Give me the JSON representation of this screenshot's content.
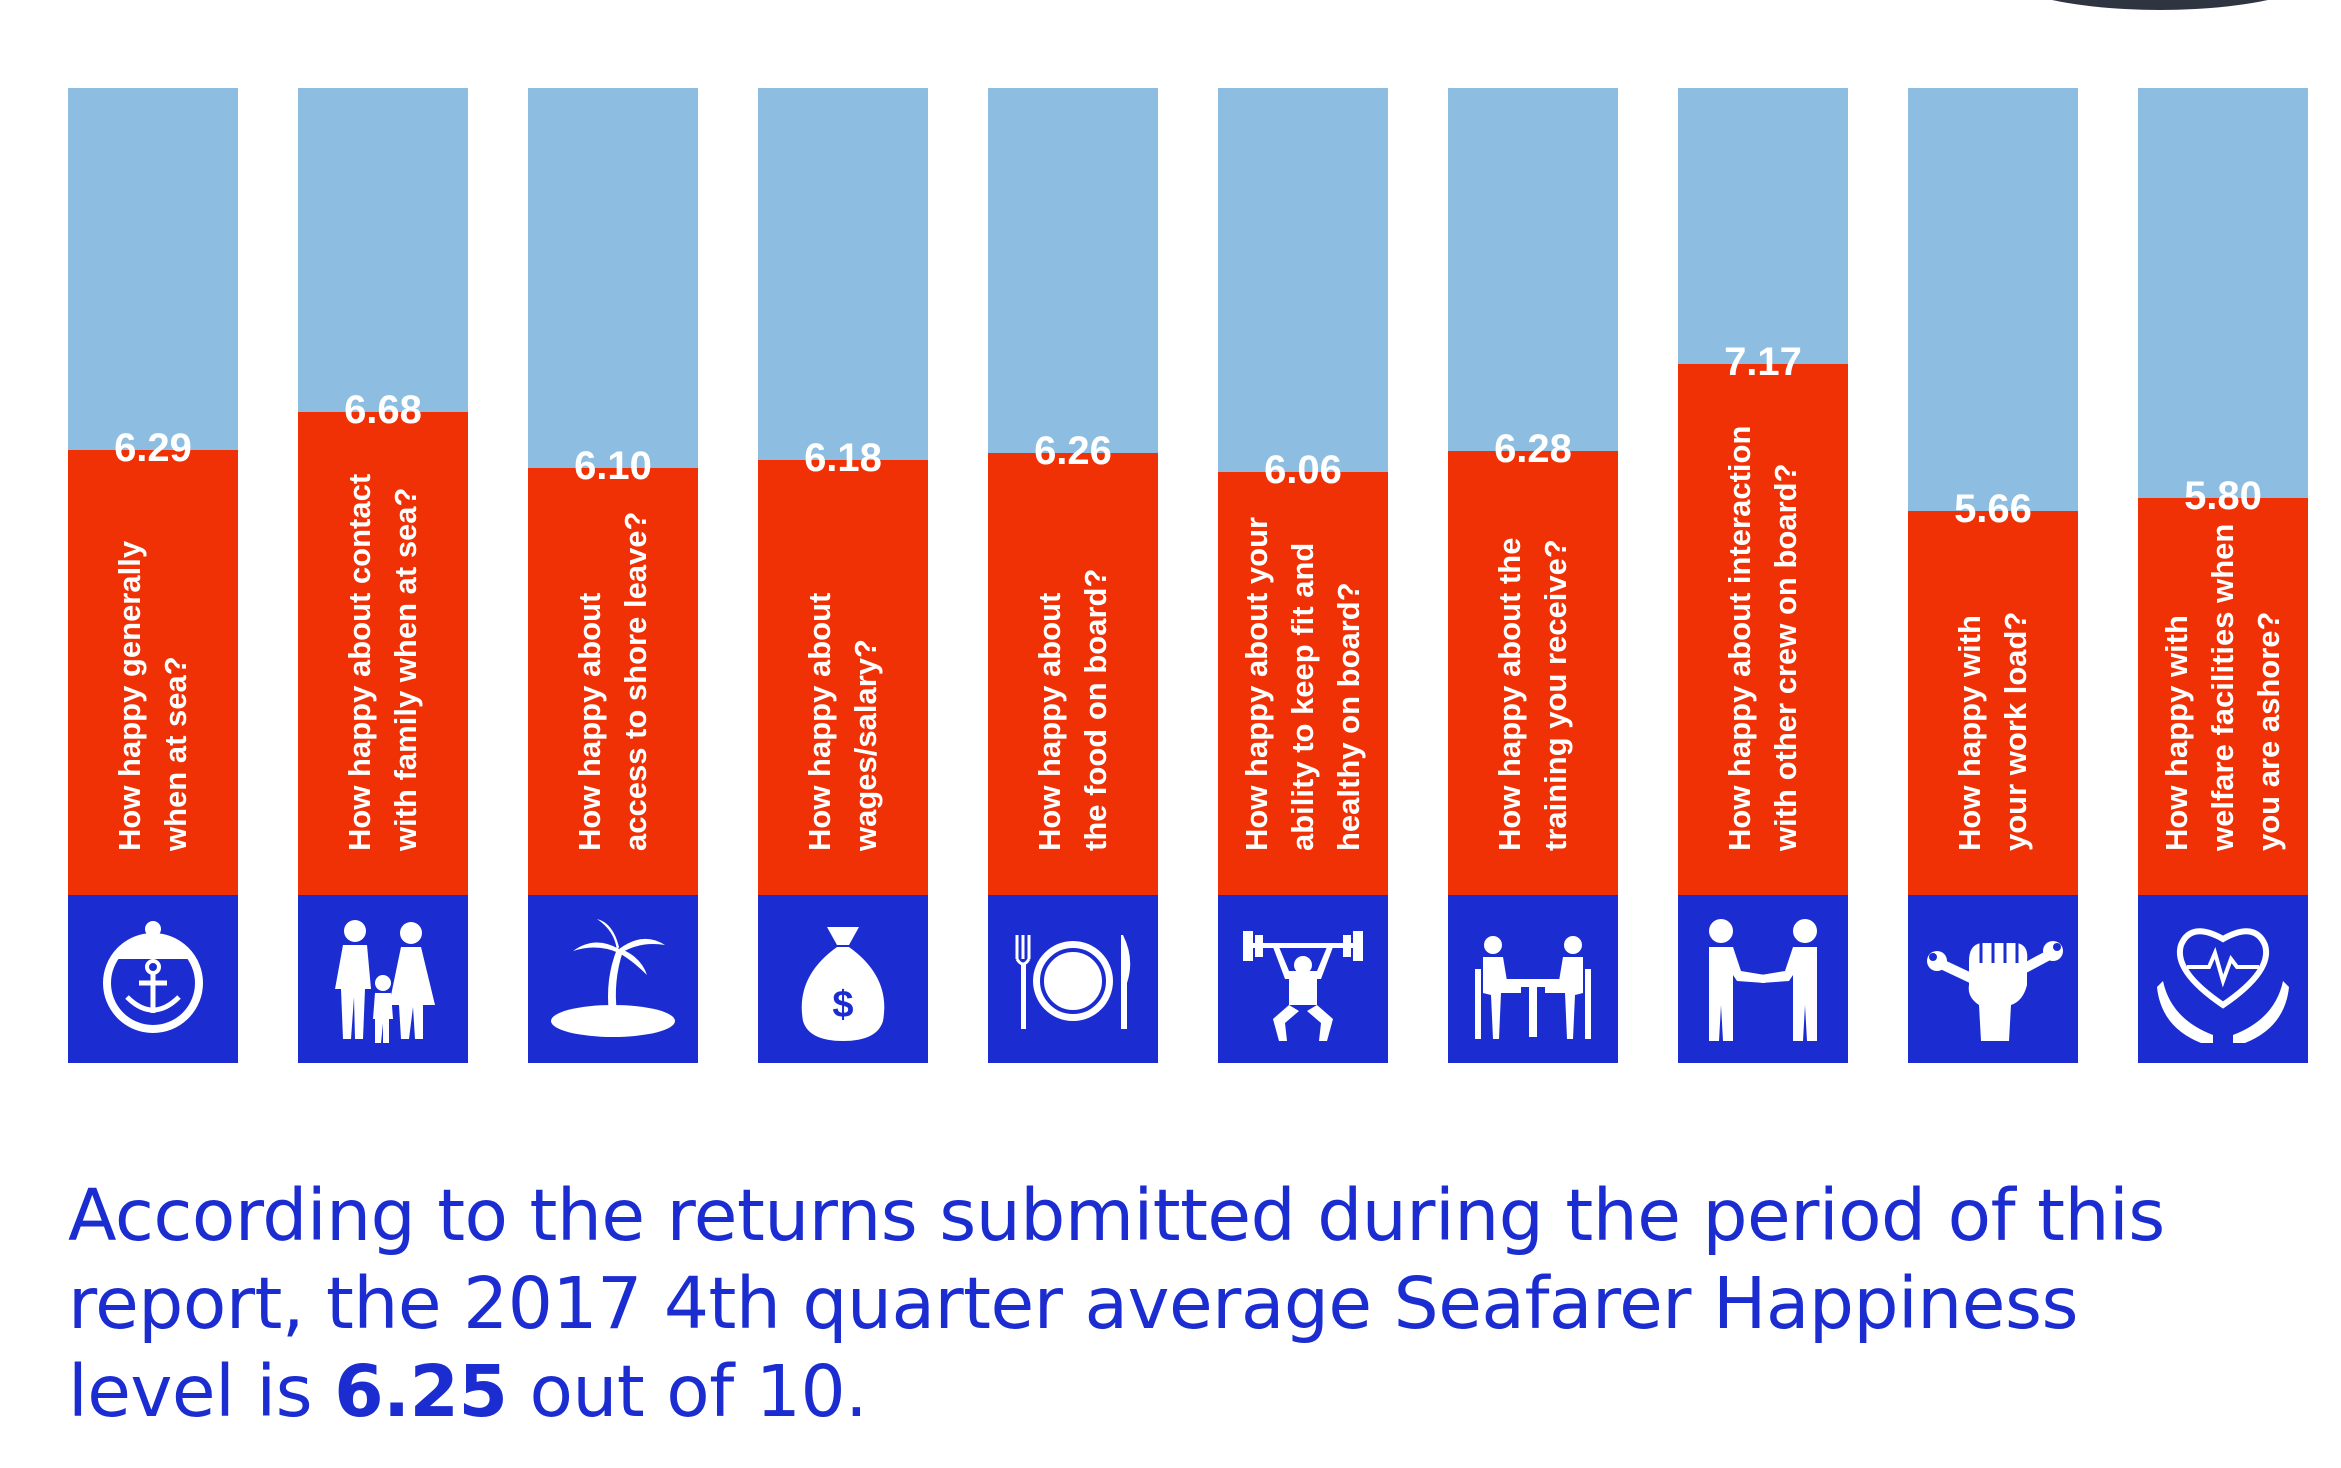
{
  "chart_data": {
    "type": "bar",
    "ylim": [
      0,
      10
    ],
    "categories": [
      "How happy generally\nwhen at sea?",
      "How happy about contact\nwith family when at sea?",
      "How happy about\naccess to shore leave?",
      "How happy about\nwages/salary?",
      "How happy about\nthe food on board?",
      "How happy about your\nability to keep fit and\nhealthy on board?",
      "How happy about the\ntraining you receive?",
      "How happy about interaction\nwith other crew on board?",
      "How happy with\nyour work load?",
      "How happy with\nwelfare facilities when\nyou are ashore?"
    ],
    "values": [
      6.29,
      6.68,
      6.1,
      6.18,
      6.26,
      6.06,
      6.28,
      7.17,
      5.66,
      5.8
    ],
    "value_labels": [
      "6.29",
      "6.68",
      "6.10",
      "6.18",
      "6.26",
      "6.06",
      "6.28",
      "7.17",
      "5.66",
      "5.80"
    ],
    "icons": [
      "anchor-face-icon",
      "family-icon",
      "island-icon",
      "money-bag-icon",
      "plate-cutlery-icon",
      "weightlifter-icon",
      "training-table-icon",
      "handshake-icon",
      "raised-fist-wrench-icon",
      "heart-hands-icon"
    ],
    "colors": {
      "filled": "#f03005",
      "unfilled": "#8dbde0",
      "icon_bg": "#1b2dd1"
    }
  },
  "caption": {
    "before": "According to the returns submitted during the period of this report, the 2017 4th quarter average Seafarer Happiness level is ",
    "highlight": "6.25",
    "after": " out of 10."
  }
}
